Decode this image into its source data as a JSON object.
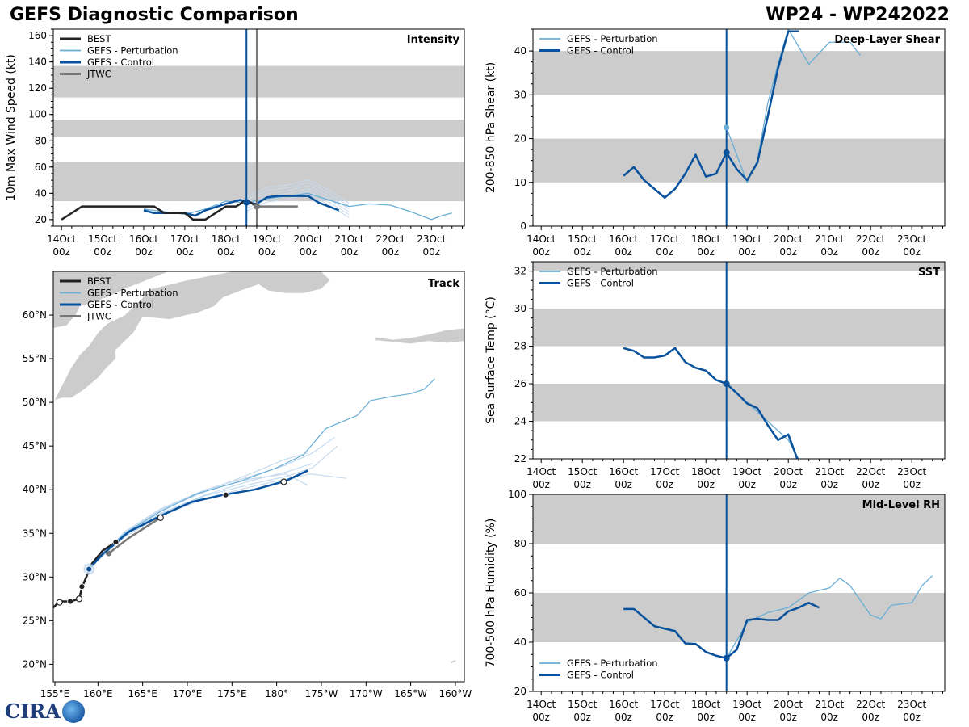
{
  "header": {
    "title_left": "GEFS Diagnostic Comparison",
    "title_right": "WP24 - WP242022"
  },
  "logo": {
    "text": "CIRA"
  },
  "colors": {
    "best": "#222222",
    "perturbation": "#6aaed6",
    "perturbation_light": "#c6dbef",
    "control": "#08519c",
    "jtwc": "#777777",
    "band": "#cccccc",
    "land": "#cccccc"
  },
  "time_axis": {
    "labels": [
      [
        "14Oct",
        "00z"
      ],
      [
        "15Oct",
        "00z"
      ],
      [
        "16Oct",
        "00z"
      ],
      [
        "17Oct",
        "00z"
      ],
      [
        "18Oct",
        "00z"
      ],
      [
        "19Oct",
        "00z"
      ],
      [
        "20Oct",
        "00z"
      ],
      [
        "21Oct",
        "00z"
      ],
      [
        "22Oct",
        "00z"
      ],
      [
        "23Oct",
        "00z"
      ]
    ],
    "range": [
      -0.2,
      9.8
    ],
    "now": 4.5,
    "jtwc_line": 4.75
  },
  "chart_data": [
    {
      "id": "intensity",
      "type": "line",
      "panel_label": "Intensity",
      "ylabel": "10m Max Wind Speed (kt)",
      "ylim": [
        15,
        165
      ],
      "yticks": [
        20,
        40,
        60,
        80,
        100,
        120,
        140,
        160
      ],
      "bands": [
        [
          34,
          64
        ],
        [
          83,
          96
        ],
        [
          113,
          137
        ]
      ],
      "legend": [
        "BEST",
        "GEFS - Perturbation",
        "GEFS - Control",
        "JTWC"
      ],
      "legend_position": "upper-left",
      "series": [
        {
          "name": "BEST",
          "x": [
            0,
            0.5,
            1,
            1.5,
            2,
            2.25,
            2.5,
            3,
            3.2,
            3.5,
            4,
            4.25,
            4.5,
            4.75
          ],
          "values": [
            20,
            30,
            30,
            30,
            30,
            30,
            25,
            25,
            20,
            20,
            30,
            30,
            35,
            30
          ]
        },
        {
          "name": "GEFS - Control",
          "x": [
            2,
            2.25,
            2.5,
            3,
            3.25,
            3.5,
            4,
            4.35,
            4.5,
            4.75,
            5,
            5.25,
            5.5,
            6,
            6.25,
            6.5,
            6.75
          ],
          "values": [
            27,
            25,
            25,
            25,
            23,
            27,
            32,
            35,
            33,
            32,
            37,
            38,
            38,
            38,
            33,
            30,
            27
          ]
        },
        {
          "name": "JTWC",
          "x": [
            4.75,
            5.75
          ],
          "values": [
            30,
            30
          ]
        },
        {
          "name": "GEFS - Perturbation",
          "x": [
            2,
            2.5,
            3,
            3.5,
            4,
            4.5,
            5,
            5.5,
            6,
            6.5,
            7,
            7.5,
            8,
            8.5,
            9,
            9.25,
            9.5
          ],
          "values": [
            28,
            26,
            24,
            28,
            34,
            33,
            36,
            38,
            40,
            35,
            30,
            32,
            31,
            26,
            20,
            23,
            25
          ]
        }
      ],
      "perturbation_members": [
        [
          4.5,
          5,
          5.5,
          6,
          6.5,
          7
        ],
        [
          33,
          40,
          42,
          46,
          38,
          28
        ]
      ],
      "markers": {
        "gefs_now": 33,
        "jtwc_now": 30
      }
    },
    {
      "id": "shear",
      "type": "line",
      "panel_label": "Deep-Layer Shear",
      "ylabel": "200-850 hPa Shear (kt)",
      "ylim": [
        0,
        45
      ],
      "yticks": [
        0,
        10,
        20,
        30,
        40
      ],
      "bands": [
        [
          10,
          20
        ],
        [
          30,
          40
        ]
      ],
      "legend": [
        "GEFS - Perturbation",
        "GEFS - Control"
      ],
      "legend_position": "upper-left",
      "series": [
        {
          "name": "GEFS - Control",
          "x": [
            2,
            2.25,
            2.5,
            3,
            3.25,
            3.5,
            3.75,
            4,
            4.25,
            4.5,
            4.75,
            5,
            5.25,
            5.5,
            5.75,
            6,
            6.25
          ],
          "values": [
            11.5,
            13.5,
            10.5,
            6.5,
            8.5,
            12,
            16.3,
            11.3,
            12,
            16.8,
            13,
            10.5,
            14.5,
            25,
            36,
            44.5,
            44.5
          ]
        },
        {
          "name": "GEFS - Perturbation",
          "x": [
            4.5,
            5,
            5.25,
            5.5,
            5.75,
            6,
            6.5,
            7,
            7.5,
            7.75
          ],
          "values": [
            22.5,
            10,
            15,
            28,
            37,
            45,
            37,
            42,
            42,
            39
          ]
        }
      ],
      "markers": {
        "control_now": 16.8,
        "perturbation_now": 22.5
      }
    },
    {
      "id": "sst",
      "type": "line",
      "panel_label": "SST",
      "ylabel": "Sea Surface Temp (°C)",
      "ylim": [
        22,
        32.5
      ],
      "yticks": [
        22,
        24,
        26,
        28,
        30,
        32
      ],
      "bands": [
        [
          24,
          26
        ],
        [
          28,
          30
        ],
        [
          32,
          32.5
        ]
      ],
      "legend": [
        "GEFS - Perturbation",
        "GEFS - Control"
      ],
      "legend_position": "upper-left",
      "series": [
        {
          "name": "GEFS - Control",
          "x": [
            2,
            2.25,
            2.5,
            2.75,
            3,
            3.25,
            3.5,
            3.75,
            4,
            4.25,
            4.5,
            4.75,
            5,
            5.25,
            5.5,
            5.75,
            6,
            6.25
          ],
          "values": [
            27.9,
            27.75,
            27.4,
            27.4,
            27.5,
            27.9,
            27.15,
            26.85,
            26.7,
            26.2,
            26,
            25.5,
            24.95,
            24.7,
            23.8,
            23,
            23.3,
            21.8
          ]
        },
        {
          "name": "GEFS - Perturbation",
          "x": [
            4.5,
            5,
            5.5,
            6,
            6.25
          ],
          "values": [
            26,
            25,
            24,
            23,
            22
          ]
        }
      ],
      "markers": {
        "control_now": 26.0
      }
    },
    {
      "id": "rh",
      "type": "line",
      "panel_label": "Mid-Level RH",
      "ylabel": "700-500 hPa Humidity (%)",
      "ylim": [
        20,
        100
      ],
      "yticks": [
        20,
        40,
        60,
        80,
        100
      ],
      "bands": [
        [
          40,
          60
        ],
        [
          80,
          100
        ]
      ],
      "legend": [
        "GEFS - Perturbation",
        "GEFS - Control"
      ],
      "legend_position": "lower-left",
      "series": [
        {
          "name": "GEFS - Control",
          "x": [
            2,
            2.25,
            2.5,
            2.75,
            3,
            3.25,
            3.5,
            3.75,
            4,
            4.25,
            4.5,
            4.75,
            5,
            5.25,
            5.5,
            5.75,
            6,
            6.25,
            6.5,
            6.75
          ],
          "values": [
            53.5,
            53.5,
            50,
            46.5,
            45.5,
            44.5,
            39.5,
            39.3,
            36,
            34.5,
            33.5,
            37,
            49,
            49.5,
            49,
            49,
            52.5,
            54,
            56,
            54
          ]
        },
        {
          "name": "GEFS - Perturbation",
          "x": [
            4.5,
            5,
            5.5,
            6,
            6.5,
            7,
            7.25,
            7.5,
            8,
            8.25,
            8.5,
            9,
            9.25,
            9.5
          ],
          "values": [
            33.5,
            48,
            52,
            54,
            60,
            62,
            66,
            63,
            51,
            49.5,
            55,
            56,
            63,
            67
          ]
        }
      ],
      "markers": {
        "control_now": 33.5
      }
    }
  ],
  "track": {
    "panel_label": "Track",
    "lon_ticks": [
      "155°E",
      "160°E",
      "165°E",
      "170°E",
      "175°E",
      "180°",
      "175°W",
      "170°W",
      "165°W",
      "160°W"
    ],
    "lat_ticks": [
      "20°N",
      "25°N",
      "30°N",
      "35°N",
      "40°N",
      "45°N",
      "50°N",
      "55°N",
      "60°N"
    ],
    "lon_range": [
      155,
      201
    ],
    "lat_range": [
      18,
      65
    ],
    "legend": [
      "BEST",
      "GEFS - Perturbation",
      "GEFS - Control",
      "JTWC"
    ],
    "best": [
      [
        155,
        26.5
      ],
      [
        155.7,
        27.2
      ],
      [
        156.9,
        27.2
      ],
      [
        157.9,
        27.5
      ],
      [
        158.2,
        28.8
      ],
      [
        158.7,
        30
      ],
      [
        159.3,
        31.5
      ],
      [
        160.5,
        33
      ],
      [
        162,
        34
      ]
    ],
    "best_markers_open": [
      [
        155.7,
        27.1
      ],
      [
        157.9,
        27.5
      ]
    ],
    "best_markers_filled": [
      [
        156.9,
        27.2
      ],
      [
        158.2,
        28.9
      ],
      [
        162,
        34
      ]
    ],
    "control": [
      [
        159,
        30.9
      ],
      [
        160.5,
        32.6
      ],
      [
        163.5,
        35.2
      ],
      [
        167,
        37
      ],
      [
        170.5,
        38.6
      ],
      [
        174,
        39.4
      ],
      [
        177.5,
        40
      ],
      [
        181,
        41
      ],
      [
        183.5,
        42.2
      ]
    ],
    "control_markers_open": [
      [
        167,
        36.8
      ],
      [
        180.8,
        40.9
      ]
    ],
    "control_markers_filled": [
      [
        174.3,
        39.4
      ],
      [
        159,
        30.9
      ]
    ],
    "jtwc": [
      [
        161.2,
        32.7
      ],
      [
        163.5,
        34.5
      ],
      [
        167,
        36.8
      ]
    ],
    "jtwc_markers": [
      [
        161.2,
        32.7
      ]
    ],
    "perturbation_long": [
      [
        159,
        31
      ],
      [
        163,
        35
      ],
      [
        167,
        37.5
      ],
      [
        171,
        39.5
      ],
      [
        176,
        41
      ],
      [
        180,
        42.5
      ],
      [
        183,
        44
      ],
      [
        185.5,
        47
      ],
      [
        189,
        48.5
      ],
      [
        190.5,
        50.2
      ],
      [
        193,
        50.7
      ],
      [
        195,
        51
      ],
      [
        196.5,
        51.5
      ],
      [
        197.7,
        52.7
      ]
    ],
    "perturbation_members": [
      [
        [
          159,
          31
        ],
        [
          163,
          35.2
        ],
        [
          167,
          37.8
        ],
        [
          172,
          40
        ],
        [
          177,
          41.5
        ],
        [
          181,
          42.8
        ],
        [
          184,
          44.2
        ],
        [
          186.5,
          46
        ]
      ],
      [
        [
          159,
          31
        ],
        [
          163,
          34.8
        ],
        [
          167,
          37.2
        ],
        [
          172,
          39.3
        ],
        [
          177,
          40.6
        ],
        [
          181,
          41.5
        ],
        [
          184,
          42.5
        ],
        [
          186.8,
          45
        ]
      ],
      [
        [
          159,
          31
        ],
        [
          163,
          35
        ],
        [
          167,
          37.6
        ],
        [
          172,
          39.8
        ],
        [
          177,
          41.8
        ],
        [
          181,
          43.5
        ],
        [
          183.5,
          44.2
        ]
      ],
      [
        [
          159,
          31
        ],
        [
          163,
          34.6
        ],
        [
          167,
          37
        ],
        [
          172,
          39
        ],
        [
          177,
          40.3
        ],
        [
          181,
          41.2
        ],
        [
          183.8,
          41.8
        ],
        [
          187.8,
          41.3
        ]
      ],
      [
        [
          159,
          31
        ],
        [
          163,
          34.9
        ],
        [
          167,
          37.3
        ],
        [
          172,
          39.4
        ],
        [
          177,
          41
        ],
        [
          181,
          42
        ],
        [
          184,
          43
        ]
      ],
      [
        [
          159,
          31
        ],
        [
          163,
          35.1
        ],
        [
          167,
          37.7
        ],
        [
          172,
          39.9
        ],
        [
          177,
          41.2
        ],
        [
          181,
          41.8
        ],
        [
          183.5,
          40.5
        ]
      ]
    ],
    "land": [
      [
        [
          155,
          50
        ],
        [
          156,
          52
        ],
        [
          157,
          54
        ],
        [
          158,
          55.5
        ],
        [
          159,
          56.5
        ],
        [
          160,
          58
        ],
        [
          161,
          59
        ],
        [
          163,
          60
        ],
        [
          164,
          61
        ],
        [
          166,
          63
        ],
        [
          170,
          64
        ],
        [
          175,
          65
        ],
        [
          180,
          65
        ],
        [
          185,
          65
        ],
        [
          186,
          64
        ],
        [
          185,
          63
        ],
        [
          183,
          62.5
        ],
        [
          181,
          62.5
        ],
        [
          179,
          62.8
        ],
        [
          178,
          63.5
        ],
        [
          176,
          62.8
        ],
        [
          174,
          62
        ],
        [
          173,
          61
        ],
        [
          171,
          60.2
        ],
        [
          170,
          60
        ],
        [
          168,
          59.5
        ],
        [
          165,
          59.8
        ],
        [
          164,
          58
        ],
        [
          163,
          57
        ],
        [
          162,
          56
        ],
        [
          162,
          55
        ],
        [
          161,
          54
        ],
        [
          160,
          52.8
        ],
        [
          158.5,
          51.5
        ],
        [
          157,
          50.5
        ],
        [
          156,
          50.5
        ],
        [
          155,
          50.2
        ]
      ],
      [
        [
          155,
          65
        ],
        [
          155,
          58.5
        ],
        [
          156.5,
          58.8
        ],
        [
          157.5,
          60
        ],
        [
          158,
          61
        ],
        [
          161,
          62
        ],
        [
          163,
          63
        ],
        [
          166,
          64.2
        ],
        [
          168,
          65
        ]
      ],
      [
        [
          191,
          57.5
        ],
        [
          193,
          57.2
        ],
        [
          195,
          57.4
        ],
        [
          197,
          57.8
        ],
        [
          199,
          58.3
        ],
        [
          201,
          58.5
        ],
        [
          201,
          57
        ],
        [
          199,
          56.8
        ],
        [
          197,
          57
        ],
        [
          195,
          56.7
        ],
        [
          193,
          56.9
        ],
        [
          191,
          57.1
        ]
      ]
    ]
  }
}
